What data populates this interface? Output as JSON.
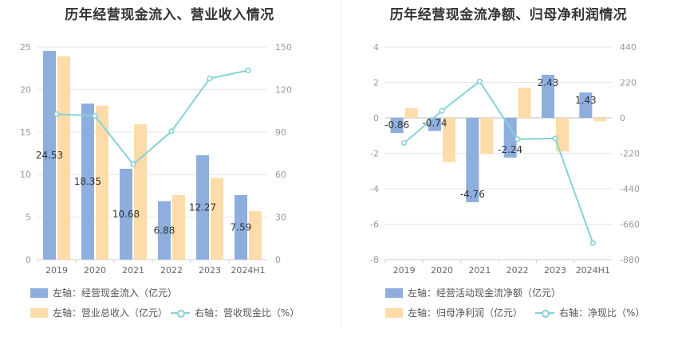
{
  "colors": {
    "blue": "#8eaedd",
    "orange": "#fedcaa",
    "line": "#86d1d8",
    "grid": "#e6e6e6",
    "axis": "#999999"
  },
  "chart_data": [
    {
      "type": "bar",
      "title": "历年经营现金流入、营业收入情况",
      "categories": [
        "2019",
        "2020",
        "2021",
        "2022",
        "2023",
        "2024H1"
      ],
      "yleft": {
        "lim": [
          0,
          25
        ],
        "ticks": [
          "0",
          "5",
          "10",
          "15",
          "20",
          "25"
        ]
      },
      "yright": {
        "lim": [
          0,
          150
        ],
        "ticks": [
          "0",
          "30",
          "60",
          "90",
          "120",
          "150"
        ]
      },
      "series": [
        {
          "name": "左轴：经营现金流入（亿元）",
          "axis": "left",
          "kind": "bar",
          "color": "#8eaedd",
          "values": [
            24.53,
            18.35,
            10.68,
            6.88,
            12.27,
            7.59
          ],
          "labels": [
            "24.53",
            "18.35",
            "10.68",
            "6.88",
            "12.27",
            "7.59"
          ]
        },
        {
          "name": "左轴：营业总收入（亿元）",
          "axis": "left",
          "kind": "bar",
          "color": "#fedcaa",
          "values": [
            23.9,
            18.1,
            15.9,
            7.6,
            9.6,
            5.7
          ]
        },
        {
          "name": "右轴：营收现金比（%）",
          "axis": "right",
          "kind": "line",
          "color": "#86d1d8",
          "values": [
            102.6,
            101.4,
            67.2,
            90.5,
            127.8,
            133.5
          ]
        }
      ]
    },
    {
      "type": "bar",
      "title": "历年经营现金流净额、归母净利润情况",
      "categories": [
        "2019",
        "2020",
        "2021",
        "2022",
        "2023",
        "2024H1"
      ],
      "yleft": {
        "lim": [
          -8,
          4
        ],
        "ticks": [
          "-8",
          "-6",
          "-4",
          "-2",
          "0",
          "2",
          "4"
        ]
      },
      "yright": {
        "lim": [
          -880,
          440
        ],
        "ticks": [
          "-880",
          "-660",
          "-440",
          "-220",
          "0",
          "220",
          "440"
        ]
      },
      "series": [
        {
          "name": "左轴：经营活动现金流净额（亿元）",
          "axis": "left",
          "kind": "bar",
          "color": "#8eaedd",
          "values": [
            -0.86,
            -0.74,
            -4.76,
            -2.24,
            2.43,
            1.43
          ],
          "labels": [
            "-0.86",
            "-0.74",
            "-4.76",
            "-2.24",
            "2.43",
            "1.43"
          ]
        },
        {
          "name": "左轴：归母净利润（亿元）",
          "axis": "left",
          "kind": "bar",
          "color": "#fedcaa",
          "values": [
            0.55,
            -2.5,
            -2.05,
            1.7,
            -1.9,
            -0.2
          ]
        },
        {
          "name": "右轴：净现比（%）",
          "axis": "right",
          "kind": "line",
          "color": "#86d1d8",
          "values": [
            -156,
            44,
            227,
            -132,
            -128,
            -778
          ]
        }
      ]
    }
  ]
}
